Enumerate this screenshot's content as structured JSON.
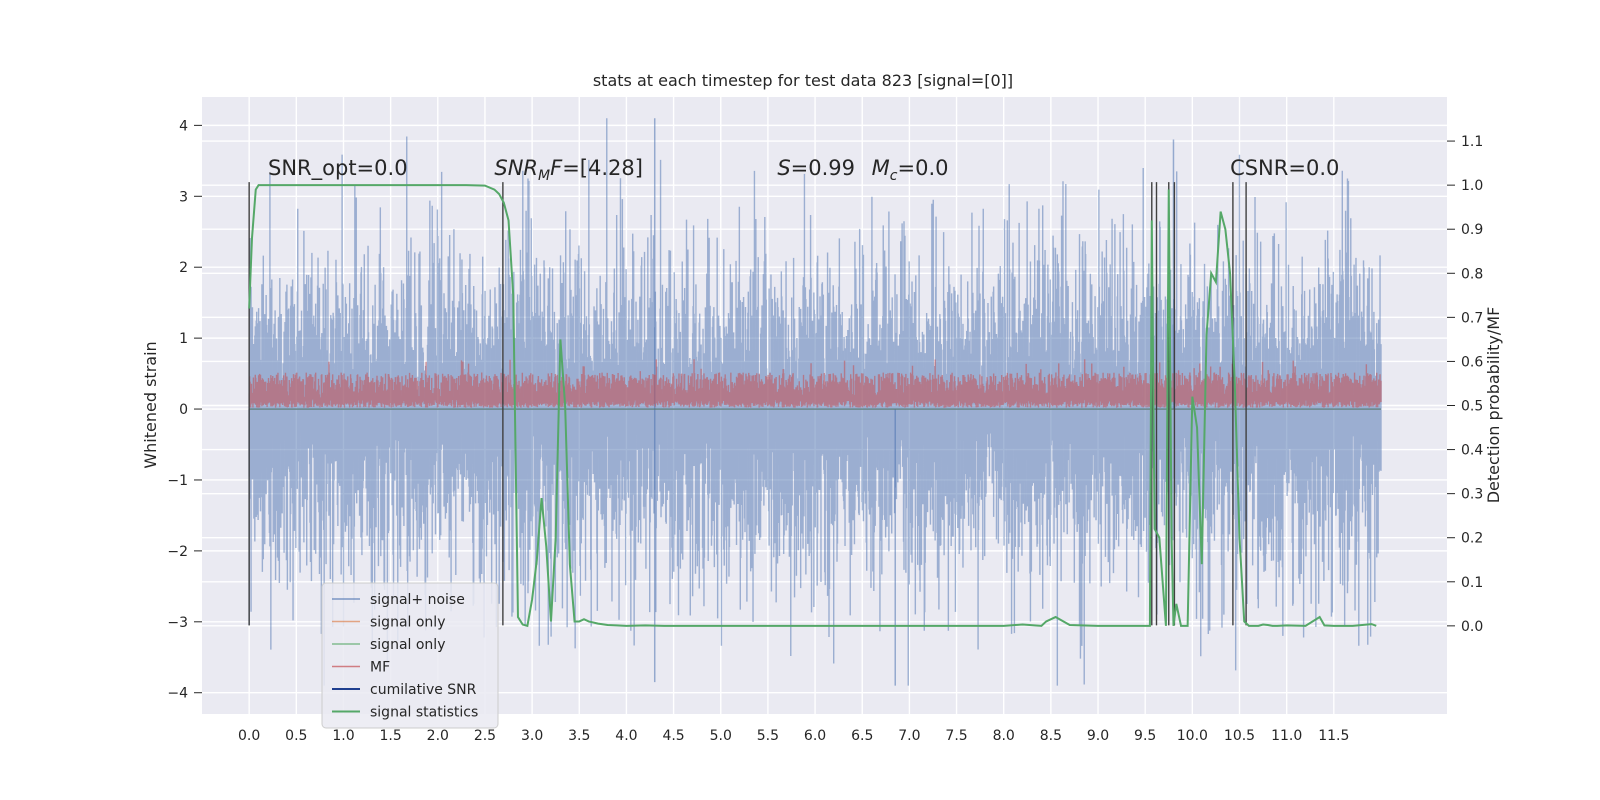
{
  "chart_data": {
    "type": "line",
    "title": "stats at each timestep for test data 823 [signal=[0]]",
    "ylabel": "Whitened strain",
    "y2label": "Detection probability/MF",
    "xlim": [
      -0.5,
      12.7
    ],
    "ylim": [
      -4.3,
      4.4
    ],
    "y2lim": [
      -0.2,
      1.2
    ],
    "x_ticks": [
      "0.0",
      "0.5",
      "1.0",
      "1.5",
      "2.0",
      "2.5",
      "3.0",
      "3.5",
      "4.0",
      "4.5",
      "5.0",
      "5.5",
      "6.0",
      "6.5",
      "7.0",
      "7.5",
      "8.0",
      "8.5",
      "9.0",
      "9.5",
      "10.0",
      "10.5",
      "11.0",
      "11.5"
    ],
    "y_ticks": [
      "4",
      "3",
      "2",
      "1",
      "0",
      "−1",
      "−2",
      "−3",
      "−4"
    ],
    "y2_ticks": [
      "1.1",
      "1.0",
      "0.9",
      "0.8",
      "0.7",
      "0.6",
      "0.5",
      "0.4",
      "0.3",
      "0.2",
      "0.1",
      "0.0"
    ],
    "grid": true,
    "legend_position": "lower-left",
    "annotations": [
      {
        "text": "SNR_opt=0.0",
        "x": 0.2,
        "y": 3.3
      },
      {
        "text": "SNR_MF=[4.28]",
        "x": 2.6,
        "y": 3.3
      },
      {
        "text": "S=0.99",
        "x": 5.6,
        "y": 3.3
      },
      {
        "text": "M_c=0.0",
        "x": 6.6,
        "y": 3.3
      },
      {
        "text": "CSNR=0.0",
        "x": 10.4,
        "y": 3.3
      }
    ],
    "series": [
      {
        "name": "signal+ noise",
        "color": "#4c72b0",
        "axis": "left",
        "x_range": [
          0.0,
          12.0
        ],
        "y_range": [
          -3.9,
          4.1
        ],
        "note_points": [
          [
            0.0,
            -3.05
          ],
          [
            4.3,
            4.1
          ],
          [
            4.3,
            -3.85
          ],
          [
            6.85,
            -3.9
          ],
          [
            9.8,
            3.8
          ]
        ]
      },
      {
        "name": "signal only",
        "color": "#dd8452",
        "axis": "left",
        "values_constant": 0.0
      },
      {
        "name": "signal only",
        "color": "#55a868",
        "axis": "left",
        "values_constant": 0.0
      },
      {
        "name": "MF",
        "color": "#c44e52",
        "axis": "right",
        "x_range": [
          0.0,
          12.0
        ],
        "y2_range": [
          0.49,
          0.63
        ]
      },
      {
        "name": "cumilative SNR",
        "color": "#1f3f8f",
        "axis": "left",
        "values_constant": 0.0
      },
      {
        "name": "signal statistics",
        "color": "#55a868",
        "axis": "right",
        "x": [
          0.0,
          0.03,
          0.07,
          0.1,
          0.15,
          0.3,
          0.6,
          1.0,
          1.5,
          2.0,
          2.3,
          2.5,
          2.6,
          2.65,
          2.7,
          2.75,
          2.8,
          2.85,
          2.9,
          2.95,
          3.0,
          3.05,
          3.1,
          3.15,
          3.2,
          3.25,
          3.3,
          3.35,
          3.4,
          3.45,
          3.5,
          3.55,
          3.6,
          3.7,
          3.8,
          3.9,
          4.0,
          4.2,
          4.4,
          4.6,
          5.0,
          6.0,
          7.0,
          7.5,
          8.0,
          8.2,
          8.4,
          8.45,
          8.55,
          8.7,
          9.0,
          9.3,
          9.55,
          9.57,
          9.6,
          9.65,
          9.72,
          9.75,
          9.78,
          9.8,
          9.83,
          9.88,
          9.95,
          10.0,
          10.05,
          10.1,
          10.15,
          10.2,
          10.25,
          10.3,
          10.35,
          10.4,
          10.45,
          10.5,
          10.55,
          10.6,
          10.7,
          10.75,
          10.8,
          10.85,
          10.9,
          11.0,
          11.2,
          11.35,
          11.4,
          11.5,
          11.7,
          11.9,
          11.95
        ],
        "y": [
          0.72,
          0.88,
          0.99,
          1.0,
          1.0,
          1.0,
          1.0,
          1.0,
          1.0,
          1.0,
          1.0,
          0.999,
          0.99,
          0.98,
          0.96,
          0.92,
          0.75,
          0.02,
          0.003,
          0.0,
          0.06,
          0.15,
          0.29,
          0.18,
          0.01,
          0.2,
          0.65,
          0.5,
          0.14,
          0.01,
          0.01,
          0.015,
          0.01,
          0.005,
          0.002,
          0.001,
          0.0,
          0.001,
          0.0,
          0.0,
          0.0,
          0.0,
          0.0,
          0.0,
          0.0,
          0.003,
          0.0,
          0.01,
          0.02,
          0.002,
          0.0,
          0.0,
          0.0,
          0.92,
          0.22,
          0.2,
          0.0,
          0.99,
          0.2,
          0.0,
          0.05,
          0.0,
          0.0,
          0.52,
          0.45,
          0.14,
          0.66,
          0.8,
          0.78,
          0.94,
          0.9,
          0.8,
          0.55,
          0.2,
          0.01,
          0.0,
          0.0,
          0.003,
          0.002,
          0.0,
          0.0,
          0.001,
          0.0,
          0.02,
          0.001,
          0.0,
          0.0,
          0.004,
          0.0
        ]
      }
    ],
    "vertical_lines_x": [
      0.0,
      2.69,
      9.57,
      9.62,
      9.75,
      9.81,
      10.43,
      10.57
    ]
  }
}
